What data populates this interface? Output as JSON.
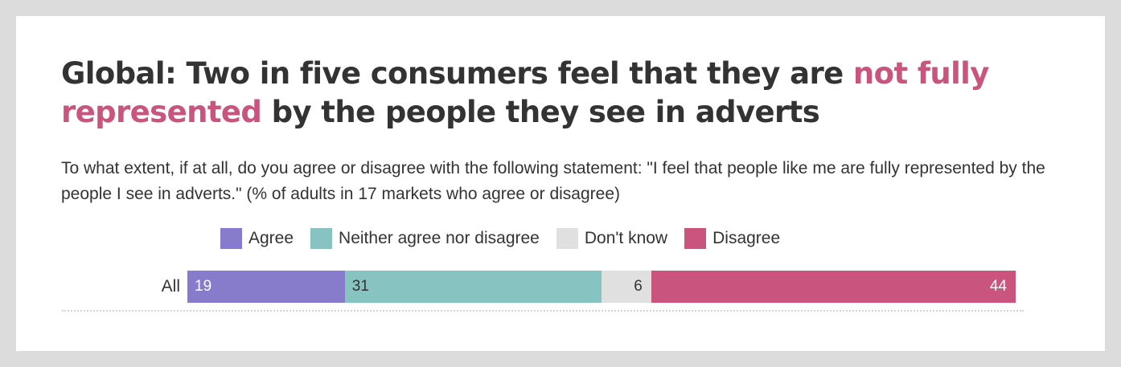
{
  "title": {
    "part1": "Global: Two in five consumers feel that they are ",
    "highlight": "not fully represented",
    "part2": " by the people they see in adverts",
    "highlight_color": "#c9547e"
  },
  "subtitle": "To what extent, if at all, do you agree or disagree with the following statement: \"I feel that people like me are fully represented by the people I see in adverts.\" (% of adults in 17 markets who agree or disagree)",
  "legend": [
    {
      "label": "Agree",
      "color": "#877bcb"
    },
    {
      "label": "Neither agree nor disagree",
      "color": "#86c3c1"
    },
    {
      "label": "Don't know",
      "color": "#e0e0e0"
    },
    {
      "label": "Disagree",
      "color": "#c9547e"
    }
  ],
  "rows": [
    {
      "label": "All",
      "segments": [
        {
          "name": "Agree",
          "value": 19,
          "display": "19",
          "color": "#877bcb",
          "text_color": "#ffffff",
          "align": "left"
        },
        {
          "name": "Neither agree nor disagree",
          "value": 31,
          "display": "31",
          "color": "#86c3c1",
          "text_color": "#333333",
          "align": "left"
        },
        {
          "name": "Don't know",
          "value": 6,
          "display": "6",
          "color": "#e0e0e0",
          "text_color": "#333333",
          "align": "right"
        },
        {
          "name": "Disagree",
          "value": 44,
          "display": "44",
          "color": "#c9547e",
          "text_color": "#ffffff",
          "align": "right"
        }
      ]
    }
  ],
  "chart_data": {
    "type": "bar",
    "orientation": "horizontal",
    "stacked": true,
    "title": "Global: Two in five consumers feel that they are not fully represented by the people they see in adverts",
    "subtitle": "To what extent, if at all, do you agree or disagree with the following statement: \"I feel that people like me are fully represented by the people I see in adverts.\" (% of adults in 17 markets who agree or disagree)",
    "categories": [
      "All"
    ],
    "series": [
      {
        "name": "Agree",
        "values": [
          19
        ],
        "color": "#877bcb"
      },
      {
        "name": "Neither agree nor disagree",
        "values": [
          31
        ],
        "color": "#86c3c1"
      },
      {
        "name": "Don't know",
        "values": [
          6
        ],
        "color": "#e0e0e0"
      },
      {
        "name": "Disagree",
        "values": [
          44
        ],
        "color": "#c9547e"
      }
    ],
    "xlabel": "",
    "ylabel": "",
    "xlim": [
      0,
      100
    ],
    "unit": "%",
    "legend_position": "top",
    "grid": false,
    "data_labels": true
  }
}
